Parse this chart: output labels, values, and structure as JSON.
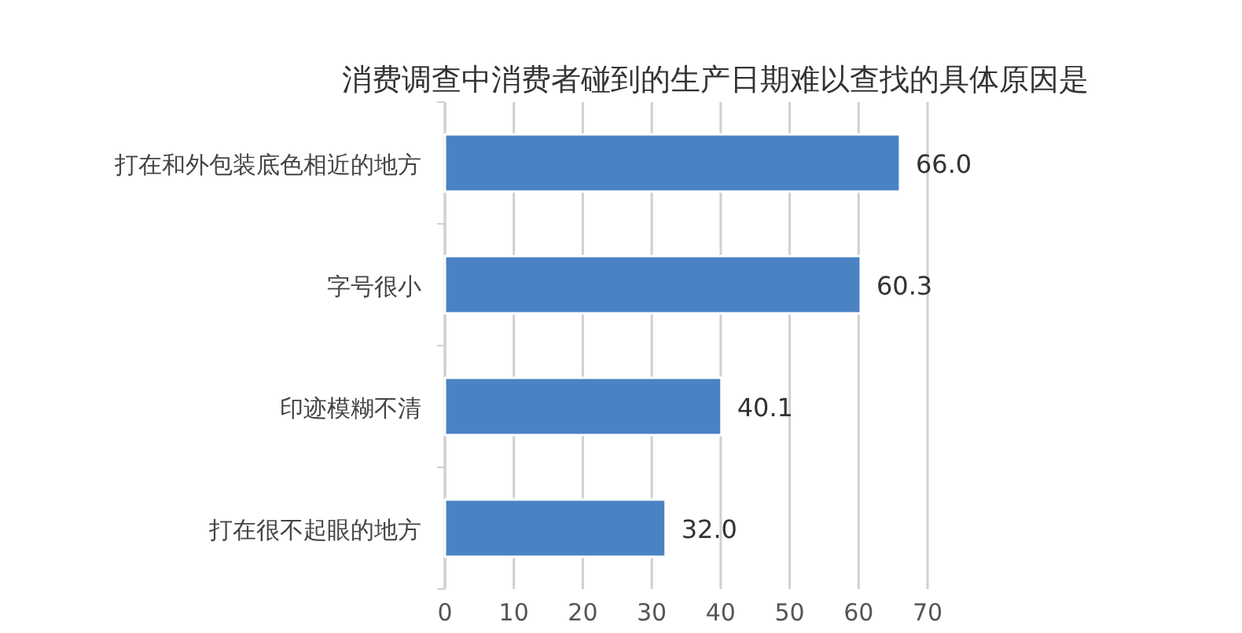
{
  "chart_data": {
    "type": "bar",
    "orientation": "horizontal",
    "title": "消费调查中消费者碰到的生产日期难以查找的具体原因是",
    "categories": [
      "打在和外包装底色相近的地方",
      "字号很小",
      "印迹模糊不清",
      "打在很不起眼的地方"
    ],
    "values": [
      66.0,
      60.3,
      40.1,
      32.0
    ],
    "color": "#4a83c4",
    "xlim": [
      0,
      70
    ],
    "xticks": [
      0,
      10,
      20,
      30,
      40,
      50,
      60,
      70
    ],
    "grid": "x",
    "value_labels": [
      "66.0",
      "60.3",
      "40.1",
      "32.0"
    ]
  }
}
